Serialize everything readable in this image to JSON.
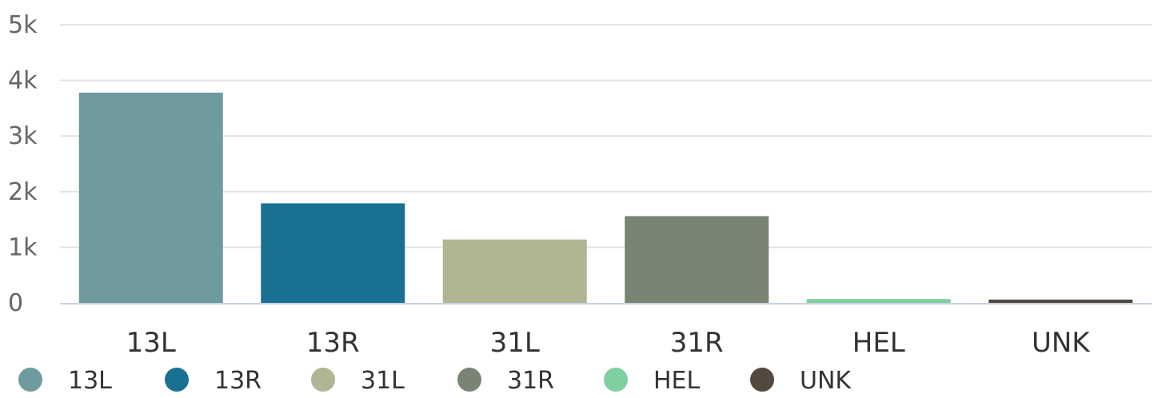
{
  "chart_data": {
    "type": "bar",
    "categories": [
      "13L",
      "13R",
      "31L",
      "31R",
      "HEL",
      "UNK"
    ],
    "values": [
      3780,
      1790,
      1140,
      1560,
      70,
      60
    ],
    "colors": [
      "#6f9a9e",
      "#1a7093",
      "#b0b592",
      "#798474",
      "#7fcfa0",
      "#53483d"
    ],
    "y_ticks": [
      {
        "value": 0,
        "label": "0"
      },
      {
        "value": 1000,
        "label": "1k"
      },
      {
        "value": 2000,
        "label": "2k"
      },
      {
        "value": 3000,
        "label": "3k"
      },
      {
        "value": 4000,
        "label": "4k"
      },
      {
        "value": 5000,
        "label": "5k"
      }
    ],
    "ylim": [
      0,
      5000
    ],
    "grid": true,
    "legend": {
      "placement": "bottom-left",
      "items": [
        "13L",
        "13R",
        "31L",
        "31R",
        "HEL",
        "UNK"
      ]
    },
    "title": "",
    "xlabel": "",
    "ylabel": ""
  }
}
